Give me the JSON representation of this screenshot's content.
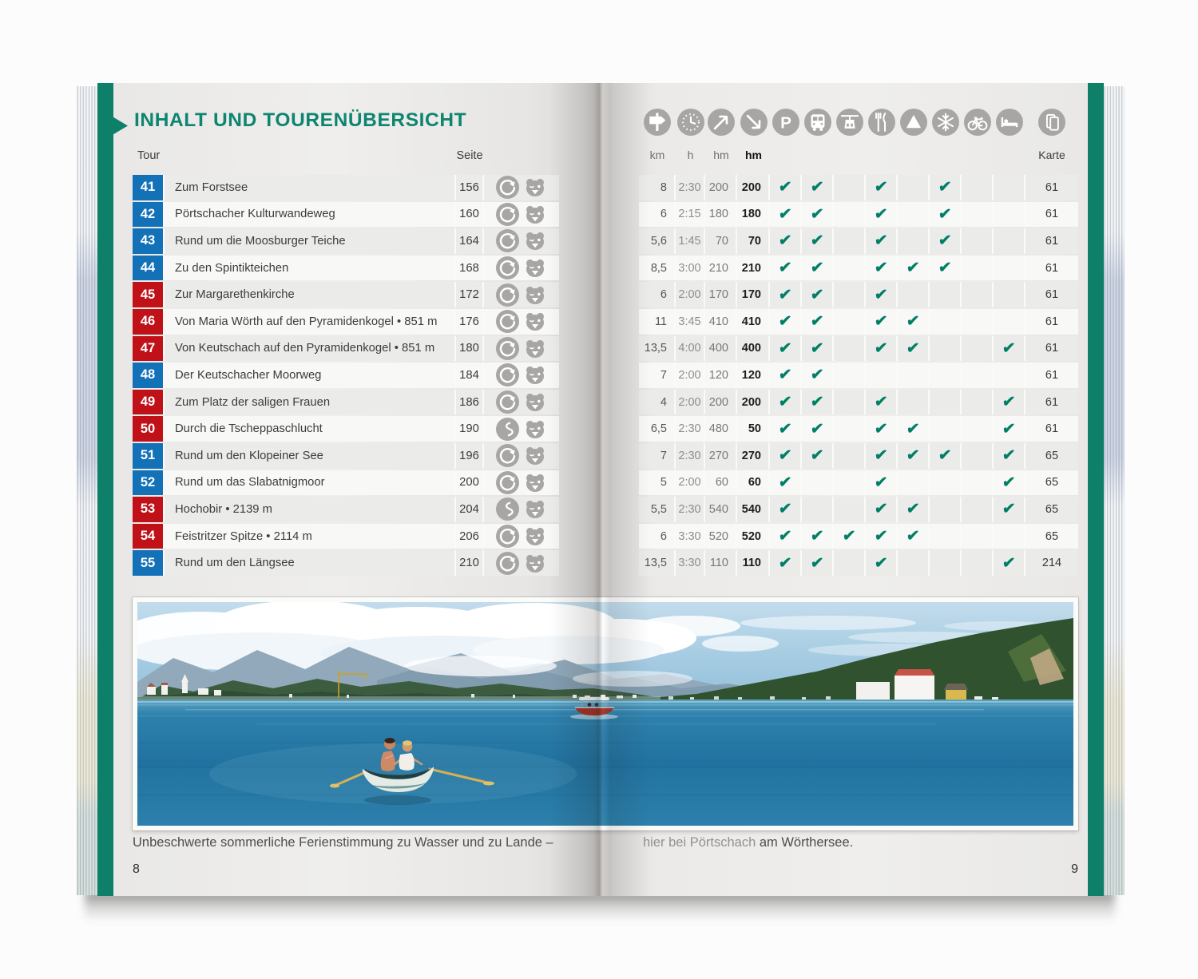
{
  "colors": {
    "accent_green": "#0d8570",
    "check_green": "#007f66",
    "tour_blue": "#1371b8",
    "tour_red": "#bf1117",
    "icon_gray": "#a7a6a4"
  },
  "left_page": {
    "title": "INHALT UND TOURENÜBERSICHT",
    "columns": {
      "tour": "Tour",
      "seite": "Seite"
    },
    "caption": "Unbeschwerte sommerliche Ferienstimmung zu Wasser und zu Lande –",
    "page_number": "8"
  },
  "right_page": {
    "caption_part1": "hier bei Pörtschach",
    "caption_part2": " am Wörthersee.",
    "page_number": "9",
    "feature_icons": [
      {
        "icon": "signpost",
        "label": "km"
      },
      {
        "icon": "clock",
        "label": "h"
      },
      {
        "icon": "ascent-arrow",
        "label": "hm"
      },
      {
        "icon": "descent-arrow",
        "label": "hm",
        "bold": true
      },
      {
        "icon": "parking",
        "label": ""
      },
      {
        "icon": "bus",
        "label": ""
      },
      {
        "icon": "cablecar",
        "label": ""
      },
      {
        "icon": "restaurant",
        "label": ""
      },
      {
        "icon": "peak",
        "label": ""
      },
      {
        "icon": "snowflake",
        "label": ""
      },
      {
        "icon": "bicycle",
        "label": ""
      },
      {
        "icon": "bed",
        "label": ""
      },
      {
        "icon": "map",
        "label": "Karte",
        "dark": true
      }
    ]
  },
  "feature_order": [
    "parking",
    "bus",
    "cablecar",
    "restaurant",
    "peak",
    "snowflake",
    "bicycle",
    "bed"
  ],
  "tours": [
    {
      "nr": "41",
      "name": "Zum Forstsee",
      "seite": "156",
      "level": "blue",
      "route": "loop",
      "family": true,
      "km": "8",
      "h": "2:30",
      "asc": "200",
      "desc": "200",
      "features": [
        1,
        1,
        0,
        1,
        0,
        1,
        0,
        0
      ],
      "karte": "61"
    },
    {
      "nr": "42",
      "name": "Pörtschacher Kulturwandeweg",
      "seite": "160",
      "level": "blue",
      "route": "loop",
      "family": true,
      "km": "6",
      "h": "2:15",
      "asc": "180",
      "desc": "180",
      "features": [
        1,
        1,
        0,
        1,
        0,
        1,
        0,
        0
      ],
      "karte": "61"
    },
    {
      "nr": "43",
      "name": "Rund um die Moosburger Teiche",
      "seite": "164",
      "level": "blue",
      "route": "loop",
      "family": true,
      "km": "5,6",
      "h": "1:45",
      "asc": "70",
      "desc": "70",
      "features": [
        1,
        1,
        0,
        1,
        0,
        1,
        0,
        0
      ],
      "karte": "61"
    },
    {
      "nr": "44",
      "name": "Zu den Spintikteichen",
      "seite": "168",
      "level": "blue",
      "route": "loop",
      "family": true,
      "km": "8,5",
      "h": "3:00",
      "asc": "210",
      "desc": "210",
      "features": [
        1,
        1,
        0,
        1,
        1,
        1,
        0,
        0
      ],
      "karte": "61"
    },
    {
      "nr": "45",
      "name": "Zur Margarethenkirche",
      "seite": "172",
      "level": "red",
      "route": "loop",
      "family": true,
      "km": "6",
      "h": "2:00",
      "asc": "170",
      "desc": "170",
      "features": [
        1,
        1,
        0,
        1,
        0,
        0,
        0,
        0
      ],
      "karte": "61"
    },
    {
      "nr": "46",
      "name": "Von Maria Wörth auf den Pyramidenkogel • 851 m",
      "seite": "176",
      "level": "red",
      "route": "loop",
      "family": true,
      "km": "11",
      "h": "3:45",
      "asc": "410",
      "desc": "410",
      "features": [
        1,
        1,
        0,
        1,
        1,
        0,
        0,
        0
      ],
      "karte": "61"
    },
    {
      "nr": "47",
      "name": "Von Keutschach auf den Pyramidenkogel • 851 m",
      "seite": "180",
      "level": "red",
      "route": "loop",
      "family": true,
      "km": "13,5",
      "h": "4:00",
      "asc": "400",
      "desc": "400",
      "features": [
        1,
        1,
        0,
        1,
        1,
        0,
        0,
        1
      ],
      "karte": "61"
    },
    {
      "nr": "48",
      "name": "Der Keutschacher Moorweg",
      "seite": "184",
      "level": "blue",
      "route": "loop",
      "family": true,
      "km": "7",
      "h": "2:00",
      "asc": "120",
      "desc": "120",
      "features": [
        1,
        1,
        0,
        0,
        0,
        0,
        0,
        0
      ],
      "karte": "61"
    },
    {
      "nr": "49",
      "name": "Zum Platz der saligen Frauen",
      "seite": "186",
      "level": "red",
      "route": "loop",
      "family": true,
      "km": "4",
      "h": "2:00",
      "asc": "200",
      "desc": "200",
      "features": [
        1,
        1,
        0,
        1,
        0,
        0,
        0,
        1
      ],
      "karte": "61"
    },
    {
      "nr": "50",
      "name": "Durch die Tscheppaschlucht",
      "seite": "190",
      "level": "red",
      "route": "linear",
      "family": true,
      "km": "6,5",
      "h": "2:30",
      "asc": "480",
      "desc": "50",
      "features": [
        1,
        1,
        0,
        1,
        1,
        0,
        0,
        1
      ],
      "karte": "61"
    },
    {
      "nr": "51",
      "name": "Rund um den Klopeiner See",
      "seite": "196",
      "level": "blue",
      "route": "loop",
      "family": true,
      "km": "7",
      "h": "2:30",
      "asc": "270",
      "desc": "270",
      "features": [
        1,
        1,
        0,
        1,
        1,
        1,
        0,
        1
      ],
      "karte": "65"
    },
    {
      "nr": "52",
      "name": "Rund um das Slabatnigmoor",
      "seite": "200",
      "level": "blue",
      "route": "loop",
      "family": true,
      "km": "5",
      "h": "2:00",
      "asc": "60",
      "desc": "60",
      "features": [
        1,
        0,
        0,
        1,
        0,
        0,
        0,
        1
      ],
      "karte": "65"
    },
    {
      "nr": "53",
      "name": "Hochobir • 2139 m",
      "seite": "204",
      "level": "red",
      "route": "linear",
      "family": true,
      "km": "5,5",
      "h": "2:30",
      "asc": "540",
      "desc": "540",
      "features": [
        1,
        0,
        0,
        1,
        1,
        0,
        0,
        1
      ],
      "karte": "65"
    },
    {
      "nr": "54",
      "name": "Feistritzer Spitze • 2114 m",
      "seite": "206",
      "level": "red",
      "route": "loop",
      "family": true,
      "km": "6",
      "h": "3:30",
      "asc": "520",
      "desc": "520",
      "features": [
        1,
        1,
        1,
        1,
        1,
        0,
        0,
        0
      ],
      "karte": "65"
    },
    {
      "nr": "55",
      "name": "Rund um den Längsee",
      "seite": "210",
      "level": "blue",
      "route": "loop",
      "family": true,
      "km": "13,5",
      "h": "3:30",
      "asc": "110",
      "desc": "110",
      "features": [
        1,
        1,
        0,
        1,
        0,
        0,
        0,
        1
      ],
      "karte": "214"
    }
  ]
}
